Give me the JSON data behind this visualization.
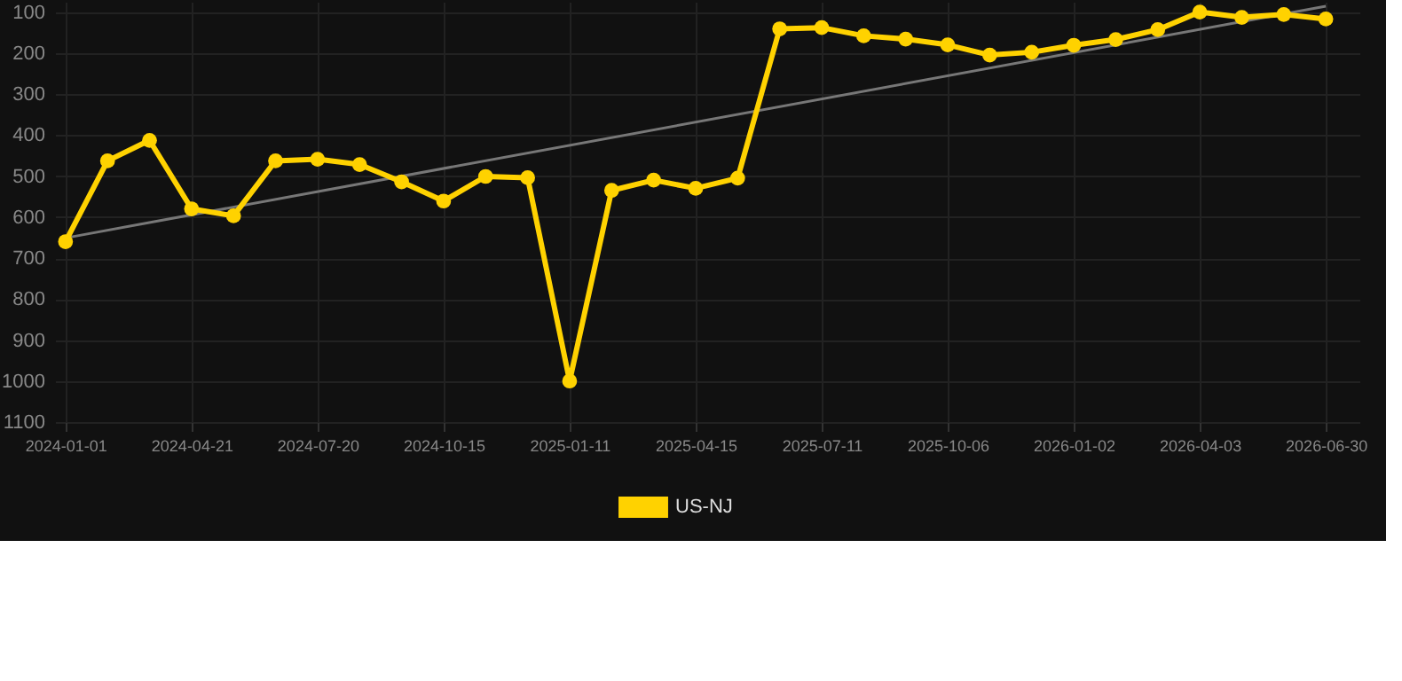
{
  "chart_data": {
    "type": "line",
    "categories": [
      "2024-01-01",
      null,
      null,
      "2024-04-21",
      null,
      null,
      "2024-07-20",
      null,
      null,
      "2024-10-15",
      null,
      null,
      "2025-01-11",
      null,
      null,
      "2025-04-15",
      null,
      null,
      "2025-07-11",
      null,
      null,
      "2025-10-06",
      null,
      null,
      "2026-01-02",
      null,
      null,
      "2026-04-03",
      null,
      null,
      "2026-06-30"
    ],
    "series": [
      {
        "name": "US-NJ",
        "color": "#ffd200",
        "values": [
          660,
          463,
          413,
          580,
          597,
          463,
          459,
          472,
          514,
          561,
          501,
          504,
          1000,
          535,
          510,
          530,
          505,
          141,
          138,
          158,
          166,
          180,
          205,
          198,
          181,
          167,
          143,
          100,
          113,
          106,
          117
        ]
      },
      {
        "type": "line",
        "color": "#777777",
        "marker": "none",
        "values": [
          651,
          null,
          null,
          null,
          null,
          null,
          null,
          null,
          null,
          null,
          null,
          null,
          null,
          null,
          null,
          null,
          null,
          null,
          null,
          null,
          null,
          null,
          null,
          null,
          null,
          null,
          null,
          null,
          null,
          null,
          86
        ]
      }
    ],
    "ylim": [
      1100,
      75
    ],
    "yticks": [
      100,
      200,
      300,
      400,
      500,
      600,
      700,
      800,
      900,
      1000,
      1100
    ],
    "grid": true,
    "legend": "bottom",
    "marker": "circle",
    "line_style": "solid"
  }
}
